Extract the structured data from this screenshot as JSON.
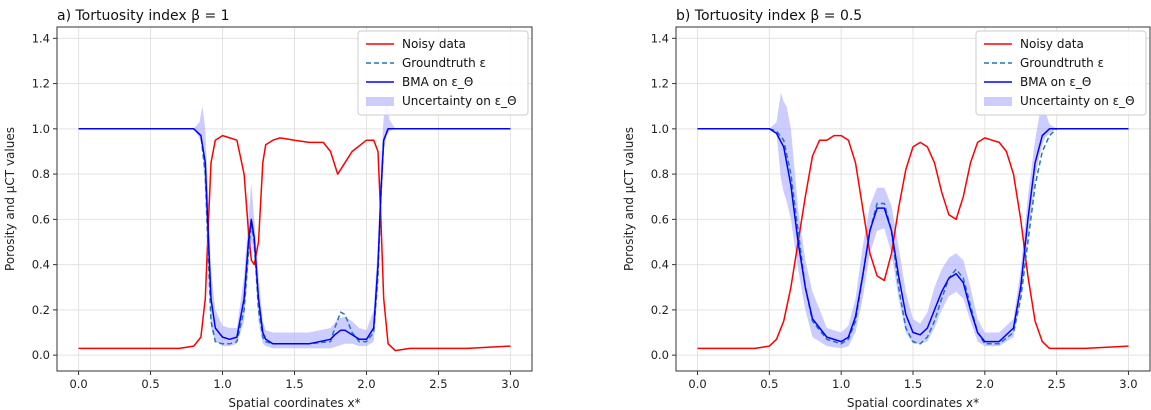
{
  "chart_data": [
    {
      "type": "line",
      "title": "a) Tortuosity index β = 1",
      "xlabel": "Spatial coordinates x*",
      "ylabel": "Porosity and μCT values",
      "xlim": [
        -0.15,
        3.15
      ],
      "ylim": [
        -0.07,
        1.45
      ],
      "xticks": [
        0.0,
        0.5,
        1.0,
        1.5,
        2.0,
        2.5,
        3.0
      ],
      "yticks": [
        0.0,
        0.2,
        0.4,
        0.6,
        0.8,
        1.0,
        1.2,
        1.4
      ],
      "grid": true,
      "legend_position": "top-right",
      "series": [
        {
          "name": "Noisy data",
          "color": "#ff0000",
          "style": "solid",
          "x": [
            0.0,
            0.1,
            0.2,
            0.3,
            0.4,
            0.5,
            0.6,
            0.7,
            0.8,
            0.85,
            0.88,
            0.9,
            0.92,
            0.95,
            1.0,
            1.05,
            1.1,
            1.15,
            1.18,
            1.2,
            1.22,
            1.25,
            1.28,
            1.3,
            1.35,
            1.4,
            1.5,
            1.6,
            1.7,
            1.75,
            1.8,
            1.85,
            1.9,
            2.0,
            2.05,
            2.08,
            2.1,
            2.12,
            2.15,
            2.2,
            2.3,
            2.5,
            2.7,
            3.0
          ],
          "y": [
            0.03,
            0.03,
            0.03,
            0.03,
            0.03,
            0.03,
            0.03,
            0.03,
            0.04,
            0.08,
            0.25,
            0.55,
            0.85,
            0.95,
            0.97,
            0.96,
            0.95,
            0.8,
            0.55,
            0.42,
            0.4,
            0.5,
            0.85,
            0.93,
            0.95,
            0.96,
            0.95,
            0.94,
            0.94,
            0.9,
            0.8,
            0.85,
            0.9,
            0.95,
            0.95,
            0.9,
            0.6,
            0.25,
            0.05,
            0.02,
            0.03,
            0.03,
            0.03,
            0.04
          ]
        },
        {
          "name": "Groundtruth ε",
          "color": "#1f77b4",
          "style": "dashed",
          "x": [
            0.0,
            0.8,
            0.85,
            0.88,
            0.9,
            0.92,
            0.95,
            1.0,
            1.05,
            1.1,
            1.15,
            1.18,
            1.2,
            1.22,
            1.25,
            1.28,
            1.3,
            1.35,
            1.4,
            1.6,
            1.75,
            1.78,
            1.82,
            1.85,
            1.9,
            1.95,
            2.0,
            2.05,
            2.08,
            2.1,
            2.12,
            2.15,
            2.2,
            3.0
          ],
          "y": [
            1.0,
            1.0,
            0.97,
            0.8,
            0.45,
            0.15,
            0.06,
            0.05,
            0.05,
            0.06,
            0.2,
            0.45,
            0.58,
            0.5,
            0.2,
            0.08,
            0.06,
            0.05,
            0.05,
            0.05,
            0.06,
            0.12,
            0.19,
            0.18,
            0.1,
            0.06,
            0.06,
            0.1,
            0.35,
            0.7,
            0.95,
            1.0,
            1.0,
            1.0
          ]
        },
        {
          "name": "BMA on ε_Θ",
          "color": "#0000ff",
          "style": "solid",
          "x": [
            0.0,
            0.8,
            0.85,
            0.88,
            0.9,
            0.92,
            0.95,
            1.0,
            1.05,
            1.1,
            1.15,
            1.18,
            1.2,
            1.22,
            1.25,
            1.28,
            1.3,
            1.35,
            1.4,
            1.6,
            1.75,
            1.78,
            1.82,
            1.85,
            1.9,
            1.95,
            2.0,
            2.05,
            2.08,
            2.1,
            2.12,
            2.15,
            2.2,
            3.0
          ],
          "y": [
            1.0,
            1.0,
            0.97,
            0.85,
            0.55,
            0.25,
            0.12,
            0.08,
            0.07,
            0.08,
            0.25,
            0.5,
            0.6,
            0.52,
            0.25,
            0.1,
            0.07,
            0.05,
            0.05,
            0.05,
            0.07,
            0.09,
            0.11,
            0.11,
            0.09,
            0.07,
            0.07,
            0.12,
            0.4,
            0.72,
            0.95,
            1.0,
            1.0,
            1.0
          ]
        }
      ],
      "band": {
        "name": "Uncertainty on ε_Θ",
        "color": "#aaaaff",
        "x": [
          0.0,
          0.8,
          0.84,
          0.86,
          0.88,
          0.9,
          0.92,
          0.95,
          1.0,
          1.05,
          1.1,
          1.15,
          1.18,
          1.2,
          1.22,
          1.25,
          1.28,
          1.3,
          1.35,
          1.4,
          1.6,
          1.75,
          1.8,
          1.85,
          1.9,
          1.95,
          2.0,
          2.05,
          2.08,
          2.1,
          2.12,
          2.14,
          2.16,
          2.2,
          3.0
        ],
        "lower": [
          1.0,
          1.0,
          0.96,
          0.92,
          0.7,
          0.4,
          0.12,
          0.06,
          0.04,
          0.04,
          0.05,
          0.15,
          0.4,
          0.5,
          0.45,
          0.15,
          0.05,
          0.04,
          0.03,
          0.03,
          0.03,
          0.03,
          0.04,
          0.05,
          0.05,
          0.04,
          0.04,
          0.06,
          0.3,
          0.6,
          0.9,
          0.97,
          0.99,
          1.0,
          1.0
        ],
        "upper": [
          1.0,
          1.0,
          1.03,
          1.1,
          1.0,
          0.7,
          0.38,
          0.2,
          0.13,
          0.12,
          0.12,
          0.35,
          0.6,
          0.76,
          0.6,
          0.35,
          0.15,
          0.11,
          0.1,
          0.1,
          0.1,
          0.12,
          0.16,
          0.17,
          0.15,
          0.12,
          0.11,
          0.2,
          0.5,
          0.85,
          1.05,
          1.12,
          1.04,
          1.0,
          1.0
        ]
      }
    },
    {
      "type": "line",
      "title": "b) Tortuosity index β = 0.5",
      "xlabel": "Spatial coordinates x*",
      "ylabel": "Porosity and μCT values",
      "xlim": [
        -0.15,
        3.15
      ],
      "ylim": [
        -0.07,
        1.45
      ],
      "xticks": [
        0.0,
        0.5,
        1.0,
        1.5,
        2.0,
        2.5,
        3.0
      ],
      "yticks": [
        0.0,
        0.2,
        0.4,
        0.6,
        0.8,
        1.0,
        1.2,
        1.4
      ],
      "grid": true,
      "legend_position": "top-right",
      "series": [
        {
          "name": "Noisy data",
          "color": "#ff0000",
          "style": "solid",
          "x": [
            0.0,
            0.2,
            0.4,
            0.5,
            0.55,
            0.6,
            0.65,
            0.7,
            0.75,
            0.8,
            0.85,
            0.9,
            0.95,
            1.0,
            1.05,
            1.1,
            1.15,
            1.2,
            1.25,
            1.3,
            1.35,
            1.4,
            1.45,
            1.5,
            1.55,
            1.6,
            1.65,
            1.7,
            1.75,
            1.8,
            1.85,
            1.9,
            1.95,
            2.0,
            2.05,
            2.1,
            2.15,
            2.2,
            2.25,
            2.3,
            2.35,
            2.4,
            2.45,
            2.5,
            2.7,
            3.0
          ],
          "y": [
            0.03,
            0.03,
            0.03,
            0.04,
            0.07,
            0.15,
            0.3,
            0.5,
            0.7,
            0.88,
            0.95,
            0.95,
            0.97,
            0.97,
            0.95,
            0.85,
            0.65,
            0.45,
            0.35,
            0.33,
            0.45,
            0.65,
            0.82,
            0.92,
            0.94,
            0.92,
            0.85,
            0.72,
            0.62,
            0.6,
            0.7,
            0.85,
            0.94,
            0.96,
            0.95,
            0.94,
            0.9,
            0.8,
            0.6,
            0.35,
            0.15,
            0.06,
            0.03,
            0.03,
            0.03,
            0.04
          ]
        },
        {
          "name": "Groundtruth ε",
          "color": "#1f77b4",
          "style": "dashed",
          "x": [
            0.0,
            0.5,
            0.55,
            0.6,
            0.65,
            0.7,
            0.75,
            0.8,
            0.9,
            1.0,
            1.05,
            1.1,
            1.15,
            1.2,
            1.25,
            1.3,
            1.35,
            1.4,
            1.45,
            1.5,
            1.55,
            1.6,
            1.65,
            1.7,
            1.75,
            1.8,
            1.85,
            1.9,
            1.95,
            2.0,
            2.1,
            2.2,
            2.25,
            2.3,
            2.35,
            2.4,
            2.45,
            2.5,
            3.0
          ],
          "y": [
            1.0,
            1.0,
            0.99,
            0.95,
            0.8,
            0.55,
            0.3,
            0.15,
            0.07,
            0.05,
            0.07,
            0.15,
            0.35,
            0.55,
            0.67,
            0.67,
            0.55,
            0.3,
            0.12,
            0.06,
            0.05,
            0.08,
            0.15,
            0.25,
            0.34,
            0.38,
            0.34,
            0.22,
            0.1,
            0.05,
            0.05,
            0.1,
            0.25,
            0.5,
            0.75,
            0.9,
            0.97,
            1.0,
            1.0
          ]
        },
        {
          "name": "BMA on ε_Θ",
          "color": "#0000ff",
          "style": "solid",
          "x": [
            0.0,
            0.5,
            0.55,
            0.6,
            0.65,
            0.7,
            0.75,
            0.8,
            0.9,
            1.0,
            1.05,
            1.1,
            1.15,
            1.2,
            1.25,
            1.3,
            1.35,
            1.4,
            1.45,
            1.5,
            1.55,
            1.6,
            1.65,
            1.7,
            1.75,
            1.8,
            1.85,
            1.9,
            1.95,
            2.0,
            2.1,
            2.2,
            2.25,
            2.3,
            2.35,
            2.4,
            2.45,
            2.5,
            3.0
          ],
          "y": [
            1.0,
            1.0,
            0.98,
            0.92,
            0.75,
            0.5,
            0.3,
            0.16,
            0.08,
            0.06,
            0.08,
            0.17,
            0.35,
            0.55,
            0.65,
            0.65,
            0.55,
            0.35,
            0.18,
            0.1,
            0.09,
            0.12,
            0.2,
            0.28,
            0.34,
            0.36,
            0.32,
            0.2,
            0.1,
            0.06,
            0.06,
            0.12,
            0.3,
            0.6,
            0.85,
            0.97,
            1.0,
            1.0,
            1.0
          ]
        }
      ],
      "band": {
        "name": "Uncertainty on ε_Θ",
        "color": "#aaaaff",
        "x": [
          0.0,
          0.5,
          0.55,
          0.58,
          0.6,
          0.62,
          0.65,
          0.7,
          0.75,
          0.8,
          0.9,
          1.0,
          1.05,
          1.1,
          1.15,
          1.2,
          1.25,
          1.3,
          1.35,
          1.4,
          1.45,
          1.5,
          1.55,
          1.6,
          1.65,
          1.7,
          1.75,
          1.8,
          1.85,
          1.9,
          1.95,
          2.0,
          2.1,
          2.2,
          2.25,
          2.3,
          2.35,
          2.38,
          2.4,
          2.42,
          2.45,
          2.5,
          3.0
        ],
        "lower": [
          1.0,
          1.0,
          0.98,
          0.78,
          0.72,
          0.68,
          0.6,
          0.38,
          0.2,
          0.08,
          0.04,
          0.03,
          0.04,
          0.1,
          0.25,
          0.45,
          0.55,
          0.56,
          0.45,
          0.25,
          0.1,
          0.05,
          0.05,
          0.06,
          0.12,
          0.2,
          0.26,
          0.28,
          0.25,
          0.15,
          0.06,
          0.04,
          0.04,
          0.08,
          0.25,
          0.52,
          0.78,
          0.88,
          0.93,
          0.96,
          0.98,
          1.0,
          1.0
        ],
        "upper": [
          1.0,
          1.0,
          1.03,
          1.16,
          1.12,
          1.1,
          1.0,
          0.65,
          0.42,
          0.28,
          0.12,
          0.1,
          0.13,
          0.25,
          0.48,
          0.66,
          0.74,
          0.74,
          0.66,
          0.48,
          0.28,
          0.16,
          0.14,
          0.19,
          0.3,
          0.38,
          0.43,
          0.45,
          0.42,
          0.3,
          0.16,
          0.1,
          0.1,
          0.16,
          0.38,
          0.7,
          0.95,
          1.06,
          1.1,
          1.08,
          1.02,
          1.0,
          1.0
        ]
      }
    }
  ]
}
